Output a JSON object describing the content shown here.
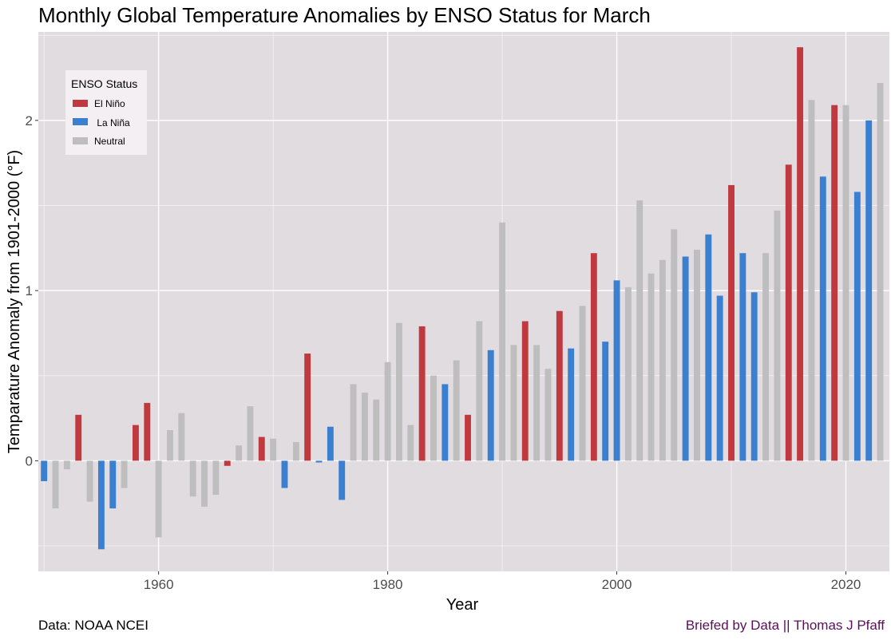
{
  "chart_data": {
    "type": "bar",
    "title": "Monthly Global Temperature Anomalies by ENSO Status for March",
    "xlabel": "Year",
    "ylabel": "Temparature Anomaly from 1901-2000 (°F)",
    "xlim": [
      1949.5,
      2023.8
    ],
    "ylim": [
      -0.65,
      2.52
    ],
    "x_ticks": [
      1960,
      1980,
      2000,
      2020
    ],
    "y_ticks": [
      0,
      1,
      2
    ],
    "grid": true,
    "legend": {
      "title": "ENSO Status",
      "position": "top-left",
      "entries": [
        {
          "label": "El Niño",
          "color": "#c0393f"
        },
        {
          "label": " La Niña",
          "color": "#3b7fd1"
        },
        {
          "label": "Neutral",
          "color": "#bebebe"
        }
      ]
    },
    "colors": {
      "El Niño": "#c0393f",
      "La Niña": "#3b7fd1",
      "Neutral": "#bebebe"
    },
    "points": [
      {
        "year": 1950,
        "value": -0.12,
        "status": "La Niña"
      },
      {
        "year": 1951,
        "value": -0.28,
        "status": "Neutral"
      },
      {
        "year": 1952,
        "value": -0.05,
        "status": "Neutral"
      },
      {
        "year": 1953,
        "value": 0.27,
        "status": "El Niño"
      },
      {
        "year": 1954,
        "value": -0.24,
        "status": "Neutral"
      },
      {
        "year": 1955,
        "value": -0.52,
        "status": "La Niña"
      },
      {
        "year": 1956,
        "value": -0.28,
        "status": "La Niña"
      },
      {
        "year": 1957,
        "value": -0.16,
        "status": "Neutral"
      },
      {
        "year": 1958,
        "value": 0.21,
        "status": "El Niño"
      },
      {
        "year": 1959,
        "value": 0.34,
        "status": "El Niño"
      },
      {
        "year": 1960,
        "value": -0.45,
        "status": "Neutral"
      },
      {
        "year": 1961,
        "value": 0.18,
        "status": "Neutral"
      },
      {
        "year": 1962,
        "value": 0.28,
        "status": "Neutral"
      },
      {
        "year": 1963,
        "value": -0.21,
        "status": "Neutral"
      },
      {
        "year": 1964,
        "value": -0.27,
        "status": "Neutral"
      },
      {
        "year": 1965,
        "value": -0.2,
        "status": "Neutral"
      },
      {
        "year": 1966,
        "value": -0.03,
        "status": "El Niño"
      },
      {
        "year": 1967,
        "value": 0.09,
        "status": "Neutral"
      },
      {
        "year": 1968,
        "value": 0.32,
        "status": "Neutral"
      },
      {
        "year": 1969,
        "value": 0.14,
        "status": "El Niño"
      },
      {
        "year": 1970,
        "value": 0.13,
        "status": "Neutral"
      },
      {
        "year": 1971,
        "value": -0.16,
        "status": "La Niña"
      },
      {
        "year": 1972,
        "value": 0.11,
        "status": "Neutral"
      },
      {
        "year": 1973,
        "value": 0.63,
        "status": "El Niño"
      },
      {
        "year": 1974,
        "value": -0.01,
        "status": "La Niña"
      },
      {
        "year": 1975,
        "value": 0.2,
        "status": "La Niña"
      },
      {
        "year": 1976,
        "value": -0.23,
        "status": "La Niña"
      },
      {
        "year": 1977,
        "value": 0.45,
        "status": "Neutral"
      },
      {
        "year": 1978,
        "value": 0.4,
        "status": "Neutral"
      },
      {
        "year": 1979,
        "value": 0.36,
        "status": "Neutral"
      },
      {
        "year": 1980,
        "value": 0.58,
        "status": "Neutral"
      },
      {
        "year": 1981,
        "value": 0.81,
        "status": "Neutral"
      },
      {
        "year": 1982,
        "value": 0.21,
        "status": "Neutral"
      },
      {
        "year": 1983,
        "value": 0.79,
        "status": "El Niño"
      },
      {
        "year": 1984,
        "value": 0.5,
        "status": "Neutral"
      },
      {
        "year": 1985,
        "value": 0.45,
        "status": "La Niña"
      },
      {
        "year": 1986,
        "value": 0.59,
        "status": "Neutral"
      },
      {
        "year": 1987,
        "value": 0.27,
        "status": "El Niño"
      },
      {
        "year": 1988,
        "value": 0.82,
        "status": "Neutral"
      },
      {
        "year": 1989,
        "value": 0.65,
        "status": "La Niña"
      },
      {
        "year": 1990,
        "value": 1.4,
        "status": "Neutral"
      },
      {
        "year": 1991,
        "value": 0.68,
        "status": "Neutral"
      },
      {
        "year": 1992,
        "value": 0.82,
        "status": "El Niño"
      },
      {
        "year": 1993,
        "value": 0.68,
        "status": "Neutral"
      },
      {
        "year": 1994,
        "value": 0.54,
        "status": "Neutral"
      },
      {
        "year": 1995,
        "value": 0.88,
        "status": "El Niño"
      },
      {
        "year": 1996,
        "value": 0.66,
        "status": "La Niña"
      },
      {
        "year": 1997,
        "value": 0.91,
        "status": "Neutral"
      },
      {
        "year": 1998,
        "value": 1.22,
        "status": "El Niño"
      },
      {
        "year": 1999,
        "value": 0.7,
        "status": "La Niña"
      },
      {
        "year": 2000,
        "value": 1.06,
        "status": "La Niña"
      },
      {
        "year": 2001,
        "value": 1.02,
        "status": "Neutral"
      },
      {
        "year": 2002,
        "value": 1.53,
        "status": "Neutral"
      },
      {
        "year": 2003,
        "value": 1.1,
        "status": "Neutral"
      },
      {
        "year": 2004,
        "value": 1.18,
        "status": "Neutral"
      },
      {
        "year": 2005,
        "value": 1.36,
        "status": "Neutral"
      },
      {
        "year": 2006,
        "value": 1.2,
        "status": "La Niña"
      },
      {
        "year": 2007,
        "value": 1.24,
        "status": "Neutral"
      },
      {
        "year": 2008,
        "value": 1.33,
        "status": "La Niña"
      },
      {
        "year": 2009,
        "value": 0.97,
        "status": "La Niña"
      },
      {
        "year": 2010,
        "value": 1.62,
        "status": "El Niño"
      },
      {
        "year": 2011,
        "value": 1.22,
        "status": "La Niña"
      },
      {
        "year": 2012,
        "value": 0.99,
        "status": "La Niña"
      },
      {
        "year": 2013,
        "value": 1.22,
        "status": "Neutral"
      },
      {
        "year": 2014,
        "value": 1.47,
        "status": "Neutral"
      },
      {
        "year": 2015,
        "value": 1.74,
        "status": "El Niño"
      },
      {
        "year": 2016,
        "value": 2.43,
        "status": "El Niño"
      },
      {
        "year": 2017,
        "value": 2.12,
        "status": "Neutral"
      },
      {
        "year": 2018,
        "value": 1.67,
        "status": "La Niña"
      },
      {
        "year": 2019,
        "value": 2.09,
        "status": "El Niño"
      },
      {
        "year": 2020,
        "value": 2.09,
        "status": "Neutral"
      },
      {
        "year": 2021,
        "value": 1.58,
        "status": "La Niña"
      },
      {
        "year": 2022,
        "value": 2.0,
        "status": "La Niña"
      },
      {
        "year": 2023,
        "value": 2.22,
        "status": "Neutral"
      }
    ]
  },
  "captions": {
    "left": "Data: NOAA NCEI",
    "right": "Briefed by Data || Thomas J Pfaff"
  }
}
